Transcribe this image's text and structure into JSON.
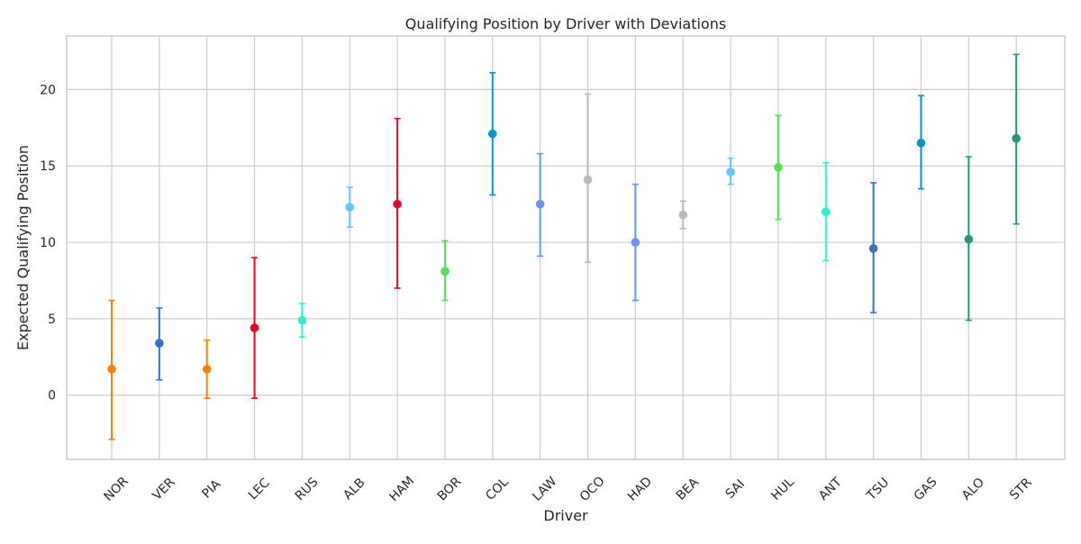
{
  "chart_data": {
    "type": "scatter",
    "title": "Qualifying Position by Driver with Deviations",
    "xlabel": "Driver",
    "ylabel": "Expected Qualifying Position",
    "ylim": [
      -4.2,
      23.5
    ],
    "yticks": [
      0,
      5,
      10,
      15,
      20
    ],
    "grid": true,
    "legend": "none",
    "categories": [
      "NOR",
      "VER",
      "PIA",
      "LEC",
      "RUS",
      "ALB",
      "HAM",
      "BOR",
      "COL",
      "LAW",
      "OCO",
      "HAD",
      "BEA",
      "SAI",
      "HUL",
      "ANT",
      "TSU",
      "GAS",
      "ALO",
      "STR"
    ],
    "points": [
      {
        "driver": "NOR",
        "value": 1.7,
        "lower": -2.9,
        "upper": 6.2,
        "color": "#FF8000"
      },
      {
        "driver": "VER",
        "value": 3.4,
        "lower": 1.0,
        "upper": 5.7,
        "color": "#3671C6"
      },
      {
        "driver": "PIA",
        "value": 1.7,
        "lower": -0.2,
        "upper": 3.6,
        "color": "#FF8000"
      },
      {
        "driver": "LEC",
        "value": 4.4,
        "lower": -0.2,
        "upper": 9.0,
        "color": "#E8002D"
      },
      {
        "driver": "RUS",
        "value": 4.9,
        "lower": 3.8,
        "upper": 6.0,
        "color": "#27F4D2"
      },
      {
        "driver": "ALB",
        "value": 12.3,
        "lower": 11.0,
        "upper": 13.6,
        "color": "#64C4FF"
      },
      {
        "driver": "HAM",
        "value": 12.5,
        "lower": 7.0,
        "upper": 18.1,
        "color": "#E8002D"
      },
      {
        "driver": "BOR",
        "value": 8.1,
        "lower": 6.2,
        "upper": 10.1,
        "color": "#52E252"
      },
      {
        "driver": "COL",
        "value": 17.1,
        "lower": 13.1,
        "upper": 21.1,
        "color": "#0093CC"
      },
      {
        "driver": "LAW",
        "value": 12.5,
        "lower": 9.1,
        "upper": 15.8,
        "color": "#6692FF"
      },
      {
        "driver": "OCO",
        "value": 14.1,
        "lower": 8.7,
        "upper": 19.7,
        "color": "#B6BABD"
      },
      {
        "driver": "HAD",
        "value": 10.0,
        "lower": 6.2,
        "upper": 13.8,
        "color": "#6692FF"
      },
      {
        "driver": "BEA",
        "value": 11.8,
        "lower": 10.9,
        "upper": 12.7,
        "color": "#B6BABD"
      },
      {
        "driver": "SAI",
        "value": 14.6,
        "lower": 13.8,
        "upper": 15.5,
        "color": "#64C4FF"
      },
      {
        "driver": "HUL",
        "value": 14.9,
        "lower": 11.5,
        "upper": 18.3,
        "color": "#52E252"
      },
      {
        "driver": "ANT",
        "value": 12.0,
        "lower": 8.8,
        "upper": 15.2,
        "color": "#27F4D2"
      },
      {
        "driver": "TSU",
        "value": 9.6,
        "lower": 5.4,
        "upper": 13.9,
        "color": "#3671C6"
      },
      {
        "driver": "GAS",
        "value": 16.5,
        "lower": 13.5,
        "upper": 19.6,
        "color": "#0093CC"
      },
      {
        "driver": "ALO",
        "value": 10.2,
        "lower": 4.9,
        "upper": 15.6,
        "color": "#229971"
      },
      {
        "driver": "STR",
        "value": 16.8,
        "lower": 11.2,
        "upper": 22.3,
        "color": "#229971"
      }
    ]
  }
}
